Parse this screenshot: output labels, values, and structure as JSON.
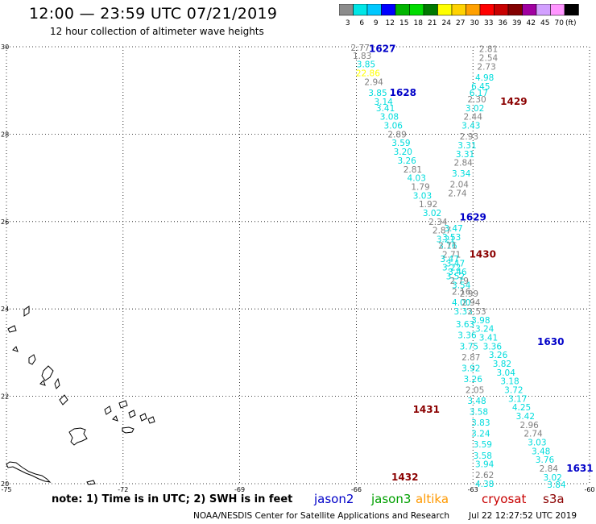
{
  "header": {
    "title": "12:00 — 23:59 UTC 07/21/2019",
    "subtitle": "12 hour collection of altimeter wave heights"
  },
  "legend": {
    "unit": "(ft)",
    "bins": [
      {
        "label": "3",
        "color": "#8c8c8c"
      },
      {
        "label": "6",
        "color": "#00e6e6"
      },
      {
        "label": "9",
        "color": "#00c8ff"
      },
      {
        "label": "12",
        "color": "#0000ff"
      },
      {
        "label": "15",
        "color": "#00b400"
      },
      {
        "label": "18",
        "color": "#00dc00"
      },
      {
        "label": "21",
        "color": "#007800"
      },
      {
        "label": "24",
        "color": "#ffff00"
      },
      {
        "label": "27",
        "color": "#ffd200"
      },
      {
        "label": "30",
        "color": "#ffa000"
      },
      {
        "label": "33",
        "color": "#ff0000"
      },
      {
        "label": "36",
        "color": "#c80000"
      },
      {
        "label": "39",
        "color": "#820000"
      },
      {
        "label": "42",
        "color": "#a000a0"
      },
      {
        "label": "45",
        "color": "#d2a0ff"
      },
      {
        "label": "70",
        "color": "#ff96ff"
      },
      {
        "label": "",
        "color": "#000000"
      }
    ]
  },
  "map": {
    "lon_range": [
      -75,
      -60
    ],
    "lat_range": [
      20,
      30
    ],
    "lon_ticks": [
      "-75",
      "-72",
      "-69",
      "-66",
      "-63",
      "-60"
    ],
    "lat_ticks": [
      "30",
      "28",
      "26",
      "24",
      "22",
      "20"
    ],
    "colors": {
      "gray": "#808080",
      "cyan": "#00dcdc",
      "yellow": "#ffff00",
      "jason2": "#0000c8",
      "cryosat": "#8b0000"
    },
    "pass_labels": [
      {
        "text": "1627",
        "lon": -65.33,
        "lat": 29.95,
        "sat": "jason2"
      },
      {
        "text": "1628",
        "lon": -64.8,
        "lat": 28.95,
        "sat": "jason2"
      },
      {
        "text": "1429",
        "lon": -61.95,
        "lat": 28.75,
        "sat": "cryosat"
      },
      {
        "text": "1629",
        "lon": -63.0,
        "lat": 26.1,
        "sat": "jason2"
      },
      {
        "text": "1430",
        "lon": -62.75,
        "lat": 25.25,
        "sat": "cryosat"
      },
      {
        "text": "1630",
        "lon": -61.0,
        "lat": 23.25,
        "sat": "jason2"
      },
      {
        "text": "1431",
        "lon": -64.2,
        "lat": 21.7,
        "sat": "cryosat"
      },
      {
        "text": "1631",
        "lon": -60.25,
        "lat": 20.35,
        "sat": "jason2"
      },
      {
        "text": "1432",
        "lon": -64.75,
        "lat": 20.15,
        "sat": "cryosat"
      }
    ],
    "swh_readings": [
      {
        "v": "2.77",
        "lon": -65.9,
        "lat": 29.98,
        "c": "gray"
      },
      {
        "v": "1.83",
        "lon": -65.85,
        "lat": 29.8,
        "c": "gray"
      },
      {
        "v": "3.85",
        "lon": -65.75,
        "lat": 29.6,
        "c": "cyan"
      },
      {
        "v": "22.86",
        "lon": -65.7,
        "lat": 29.4,
        "c": "yellow"
      },
      {
        "v": "2.94",
        "lon": -65.55,
        "lat": 29.2,
        "c": "gray"
      },
      {
        "v": "3.85",
        "lon": -65.45,
        "lat": 28.95,
        "c": "cyan"
      },
      {
        "v": "3.14",
        "lon": -65.3,
        "lat": 28.75,
        "c": "cyan"
      },
      {
        "v": "3.41",
        "lon": -65.25,
        "lat": 28.6,
        "c": "cyan"
      },
      {
        "v": "3.08",
        "lon": -65.15,
        "lat": 28.4,
        "c": "cyan"
      },
      {
        "v": "3.06",
        "lon": -65.05,
        "lat": 28.2,
        "c": "cyan"
      },
      {
        "v": "2.89",
        "lon": -64.95,
        "lat": 28.0,
        "c": "gray"
      },
      {
        "v": "3.59",
        "lon": -64.85,
        "lat": 27.8,
        "c": "cyan"
      },
      {
        "v": "3.20",
        "lon": -64.8,
        "lat": 27.6,
        "c": "cyan"
      },
      {
        "v": "3.26",
        "lon": -64.7,
        "lat": 27.4,
        "c": "cyan"
      },
      {
        "v": "2.81",
        "lon": -64.55,
        "lat": 27.2,
        "c": "gray"
      },
      {
        "v": "4.03",
        "lon": -64.45,
        "lat": 27.0,
        "c": "cyan"
      },
      {
        "v": "1.79",
        "lon": -64.35,
        "lat": 26.8,
        "c": "gray"
      },
      {
        "v": "3.03",
        "lon": -64.3,
        "lat": 26.6,
        "c": "cyan"
      },
      {
        "v": "1.92",
        "lon": -64.15,
        "lat": 26.4,
        "c": "gray"
      },
      {
        "v": "3.02",
        "lon": -64.05,
        "lat": 26.2,
        "c": "cyan"
      },
      {
        "v": "2.34",
        "lon": -63.9,
        "lat": 26.0,
        "c": "gray"
      },
      {
        "v": "2.87",
        "lon": -63.8,
        "lat": 25.8,
        "c": "gray"
      },
      {
        "v": "3.21",
        "lon": -63.7,
        "lat": 25.6,
        "c": "cyan"
      },
      {
        "v": "3.16",
        "lon": -63.65,
        "lat": 25.45,
        "c": "cyan"
      },
      {
        "v": "2.71",
        "lon": -63.55,
        "lat": 25.25,
        "c": "gray"
      },
      {
        "v": "3.47",
        "lon": -63.45,
        "lat": 25.05,
        "c": "cyan"
      },
      {
        "v": "3.46",
        "lon": -63.4,
        "lat": 24.85,
        "c": "cyan"
      },
      {
        "v": "2.79",
        "lon": -63.35,
        "lat": 24.65,
        "c": "gray"
      },
      {
        "v": "2.16",
        "lon": -63.3,
        "lat": 24.4,
        "c": "gray"
      },
      {
        "v": "4.00",
        "lon": -63.3,
        "lat": 24.15,
        "c": "cyan"
      },
      {
        "v": "3.33",
        "lon": -63.25,
        "lat": 23.95,
        "c": "cyan"
      },
      {
        "v": "3.63",
        "lon": -63.2,
        "lat": 23.65,
        "c": "cyan"
      },
      {
        "v": "3.36",
        "lon": -63.15,
        "lat": 23.4,
        "c": "cyan"
      },
      {
        "v": "3.75",
        "lon": -63.1,
        "lat": 23.15,
        "c": "cyan"
      },
      {
        "v": "2.87",
        "lon": -63.05,
        "lat": 22.9,
        "c": "gray"
      },
      {
        "v": "3.92",
        "lon": -63.05,
        "lat": 22.65,
        "c": "cyan"
      },
      {
        "v": "3.26",
        "lon": -63.0,
        "lat": 22.4,
        "c": "cyan"
      },
      {
        "v": "2.05",
        "lon": -62.95,
        "lat": 22.15,
        "c": "gray"
      },
      {
        "v": "3.48",
        "lon": -62.9,
        "lat": 21.9,
        "c": "cyan"
      },
      {
        "v": "3.58",
        "lon": -62.85,
        "lat": 21.65,
        "c": "cyan"
      },
      {
        "v": "3.83",
        "lon": -62.8,
        "lat": 21.4,
        "c": "cyan"
      },
      {
        "v": "3.24",
        "lon": -62.8,
        "lat": 21.15,
        "c": "cyan"
      },
      {
        "v": "3.59",
        "lon": -62.75,
        "lat": 20.9,
        "c": "cyan"
      },
      {
        "v": "3.58",
        "lon": -62.75,
        "lat": 20.65,
        "c": "cyan"
      },
      {
        "v": "3.94",
        "lon": -62.7,
        "lat": 20.45,
        "c": "cyan"
      },
      {
        "v": "2.62",
        "lon": -62.7,
        "lat": 20.2,
        "c": "gray"
      },
      {
        "v": "4.38",
        "lon": -62.7,
        "lat": 20.0,
        "c": "cyan"
      },
      {
        "v": "2.81",
        "lon": -62.6,
        "lat": 29.95,
        "c": "gray"
      },
      {
        "v": "2.54",
        "lon": -62.6,
        "lat": 29.75,
        "c": "gray"
      },
      {
        "v": "2.73",
        "lon": -62.65,
        "lat": 29.55,
        "c": "gray"
      },
      {
        "v": "4.98",
        "lon": -62.7,
        "lat": 29.3,
        "c": "cyan"
      },
      {
        "v": "6.45",
        "lon": -62.8,
        "lat": 29.1,
        "c": "cyan"
      },
      {
        "v": "6.17",
        "lon": -62.85,
        "lat": 28.95,
        "c": "cyan"
      },
      {
        "v": "2.30",
        "lon": -62.9,
        "lat": 28.8,
        "c": "gray"
      },
      {
        "v": "3.02",
        "lon": -62.95,
        "lat": 28.6,
        "c": "cyan"
      },
      {
        "v": "2.44",
        "lon": -63.0,
        "lat": 28.4,
        "c": "gray"
      },
      {
        "v": "3.43",
        "lon": -63.05,
        "lat": 28.2,
        "c": "cyan"
      },
      {
        "v": "2.93",
        "lon": -63.1,
        "lat": 27.95,
        "c": "gray"
      },
      {
        "v": "3.31",
        "lon": -63.15,
        "lat": 27.75,
        "c": "cyan"
      },
      {
        "v": "3.31",
        "lon": -63.2,
        "lat": 27.55,
        "c": "cyan"
      },
      {
        "v": "2.84",
        "lon": -63.25,
        "lat": 27.35,
        "c": "gray"
      },
      {
        "v": "3.34",
        "lon": -63.3,
        "lat": 27.1,
        "c": "cyan"
      },
      {
        "v": "2.04",
        "lon": -63.35,
        "lat": 26.85,
        "c": "gray"
      },
      {
        "v": "2.74",
        "lon": -63.4,
        "lat": 26.65,
        "c": "gray"
      },
      {
        "v": "3.47",
        "lon": -63.5,
        "lat": 25.85,
        "c": "cyan"
      },
      {
        "v": "3.53",
        "lon": -63.55,
        "lat": 25.65,
        "c": "cyan"
      },
      {
        "v": "2.71",
        "lon": -63.65,
        "lat": 25.45,
        "c": "gray"
      },
      {
        "v": "3.47",
        "lon": -63.6,
        "lat": 25.15,
        "c": "cyan"
      },
      {
        "v": "3.22",
        "lon": -63.55,
        "lat": 24.95,
        "c": "cyan"
      },
      {
        "v": "3.52",
        "lon": -63.45,
        "lat": 24.75,
        "c": "cyan"
      },
      {
        "v": "3.54",
        "lon": -63.3,
        "lat": 24.55,
        "c": "cyan"
      },
      {
        "v": "2.99",
        "lon": -63.1,
        "lat": 24.35,
        "c": "gray"
      },
      {
        "v": "2.94",
        "lon": -63.05,
        "lat": 24.15,
        "c": "gray"
      },
      {
        "v": "2.53",
        "lon": -62.9,
        "lat": 23.95,
        "c": "gray"
      },
      {
        "v": "3.98",
        "lon": -62.8,
        "lat": 23.75,
        "c": "cyan"
      },
      {
        "v": "3.24",
        "lon": -62.7,
        "lat": 23.55,
        "c": "cyan"
      },
      {
        "v": "3.41",
        "lon": -62.6,
        "lat": 23.35,
        "c": "cyan"
      },
      {
        "v": "3.36",
        "lon": -62.5,
        "lat": 23.15,
        "c": "cyan"
      },
      {
        "v": "3.26",
        "lon": -62.35,
        "lat": 22.95,
        "c": "cyan"
      },
      {
        "v": "3.82",
        "lon": -62.25,
        "lat": 22.75,
        "c": "cyan"
      },
      {
        "v": "3.04",
        "lon": -62.15,
        "lat": 22.55,
        "c": "cyan"
      },
      {
        "v": "3.18",
        "lon": -62.05,
        "lat": 22.35,
        "c": "cyan"
      },
      {
        "v": "3.72",
        "lon": -61.95,
        "lat": 22.15,
        "c": "cyan"
      },
      {
        "v": "3.17",
        "lon": -61.85,
        "lat": 21.95,
        "c": "cyan"
      },
      {
        "v": "4.25",
        "lon": -61.75,
        "lat": 21.75,
        "c": "cyan"
      },
      {
        "v": "3.42",
        "lon": -61.65,
        "lat": 21.55,
        "c": "cyan"
      },
      {
        "v": "2.96",
        "lon": -61.55,
        "lat": 21.35,
        "c": "gray"
      },
      {
        "v": "2.74",
        "lon": -61.45,
        "lat": 21.15,
        "c": "gray"
      },
      {
        "v": "3.03",
        "lon": -61.35,
        "lat": 20.95,
        "c": "cyan"
      },
      {
        "v": "3.48",
        "lon": -61.25,
        "lat": 20.75,
        "c": "cyan"
      },
      {
        "v": "3.76",
        "lon": -61.15,
        "lat": 20.55,
        "c": "cyan"
      },
      {
        "v": "2.84",
        "lon": -61.05,
        "lat": 20.35,
        "c": "gray"
      },
      {
        "v": "3.02",
        "lon": -60.95,
        "lat": 20.15,
        "c": "cyan"
      },
      {
        "v": "3.84",
        "lon": -60.85,
        "lat": 19.98,
        "c": "cyan"
      }
    ]
  },
  "footer": {
    "note": "note: 1) Time is in UTC; 2) SWH is in feet",
    "satellites": [
      {
        "name": "jason2",
        "color": "#0000c8"
      },
      {
        "name": "jason3",
        "color": "#00a000"
      },
      {
        "name": "altika",
        "color": "#ff9900"
      },
      {
        "name": "cryosat",
        "color": "#c80000"
      },
      {
        "name": "s3a",
        "color": "#8b0000"
      }
    ],
    "credit": "NOAA/NESDIS Center for Satellite Applications and Research",
    "timestamp": "Jul 22 12:27:52 UTC 2019"
  }
}
